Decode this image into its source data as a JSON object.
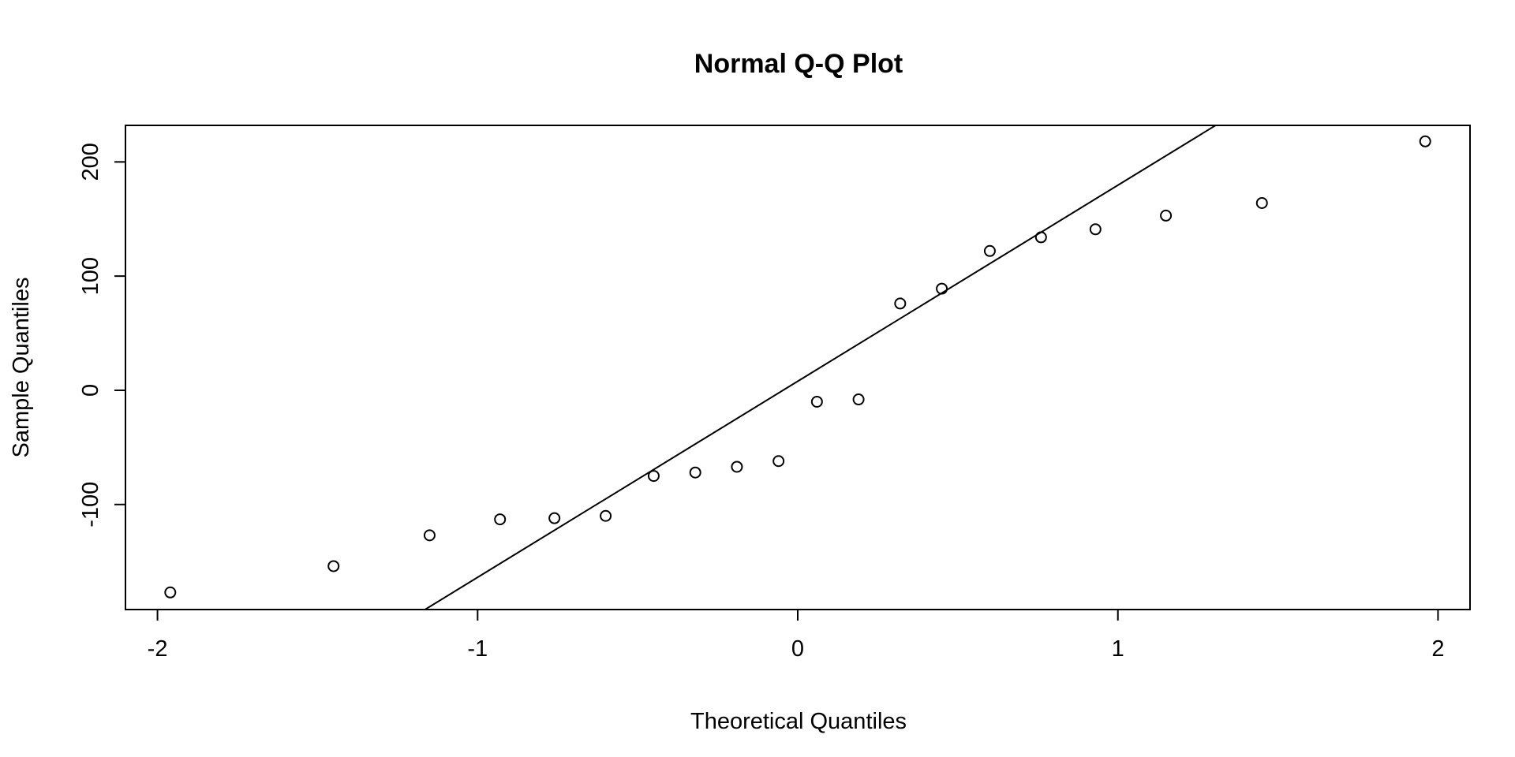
{
  "chart_data": {
    "type": "scatter",
    "title": "Normal Q-Q Plot",
    "xlabel": "Theoretical Quantiles",
    "ylabel": "Sample Quantiles",
    "xlim": [
      -2.1,
      2.1
    ],
    "ylim": [
      -192,
      232
    ],
    "x_ticks": [
      -2,
      -1,
      0,
      1,
      2
    ],
    "x_tick_labels": [
      "-2",
      "-1",
      "0",
      "1",
      "2"
    ],
    "y_ticks": [
      -100,
      0,
      100,
      200
    ],
    "y_tick_labels": [
      "-100",
      "0",
      "100",
      "200"
    ],
    "grid": false,
    "legend": "none",
    "points": [
      {
        "x": -1.96,
        "y": -177
      },
      {
        "x": -1.45,
        "y": -154
      },
      {
        "x": -1.15,
        "y": -127
      },
      {
        "x": -0.93,
        "y": -113
      },
      {
        "x": -0.76,
        "y": -112
      },
      {
        "x": -0.6,
        "y": -110
      },
      {
        "x": -0.45,
        "y": -75
      },
      {
        "x": -0.32,
        "y": -72
      },
      {
        "x": -0.19,
        "y": -67
      },
      {
        "x": -0.06,
        "y": -62
      },
      {
        "x": 0.06,
        "y": -10
      },
      {
        "x": 0.19,
        "y": -8
      },
      {
        "x": 0.32,
        "y": 76
      },
      {
        "x": 0.45,
        "y": 89
      },
      {
        "x": 0.6,
        "y": 122
      },
      {
        "x": 0.76,
        "y": 134
      },
      {
        "x": 0.93,
        "y": 141
      },
      {
        "x": 1.15,
        "y": 153
      },
      {
        "x": 1.45,
        "y": 164
      },
      {
        "x": 1.96,
        "y": 218
      }
    ],
    "reference_line": {
      "intercept": 7.9,
      "slope": 171.7
    },
    "point_style": "open-circle",
    "colors": {
      "points": "#000000",
      "line": "#000000",
      "background": "#ffffff"
    }
  }
}
